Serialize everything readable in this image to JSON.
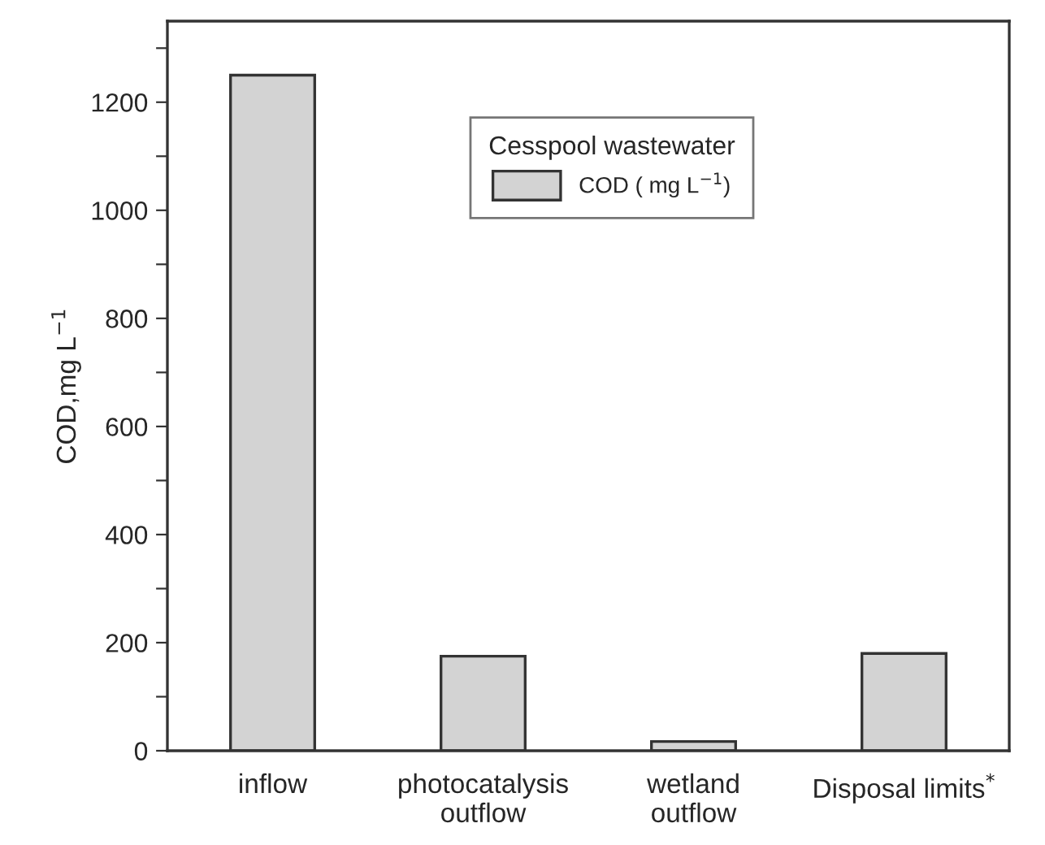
{
  "chart_data": {
    "type": "bar",
    "categories": [
      "inflow",
      "photocatalysis\noutflow",
      "wetland\noutflow",
      "Disposal limits$^{*}$"
    ],
    "series": [
      {
        "name": "COD ( mg L$^{−1}$)",
        "color": "#d3d3d3",
        "values": [
          1250,
          175,
          17,
          180
        ]
      }
    ],
    "ylabel": "COD,mg L$^{−1}$",
    "legend_title": "Cesspool wastewater",
    "legend": "top right",
    "ylim": [
      0,
      1350
    ],
    "yticks": [
      0,
      {
        "value": 100,
        "label": null
      },
      200,
      {
        "value": 300,
        "label": null
      },
      400,
      {
        "value": 500,
        "label": null
      },
      600,
      {
        "value": 700,
        "label": null
      },
      800,
      {
        "value": 900,
        "label": null
      },
      1000,
      {
        "value": 1100,
        "label": null
      },
      1200,
      {
        "value": 1300,
        "label": null
      }
    ],
    "grid": false
  }
}
